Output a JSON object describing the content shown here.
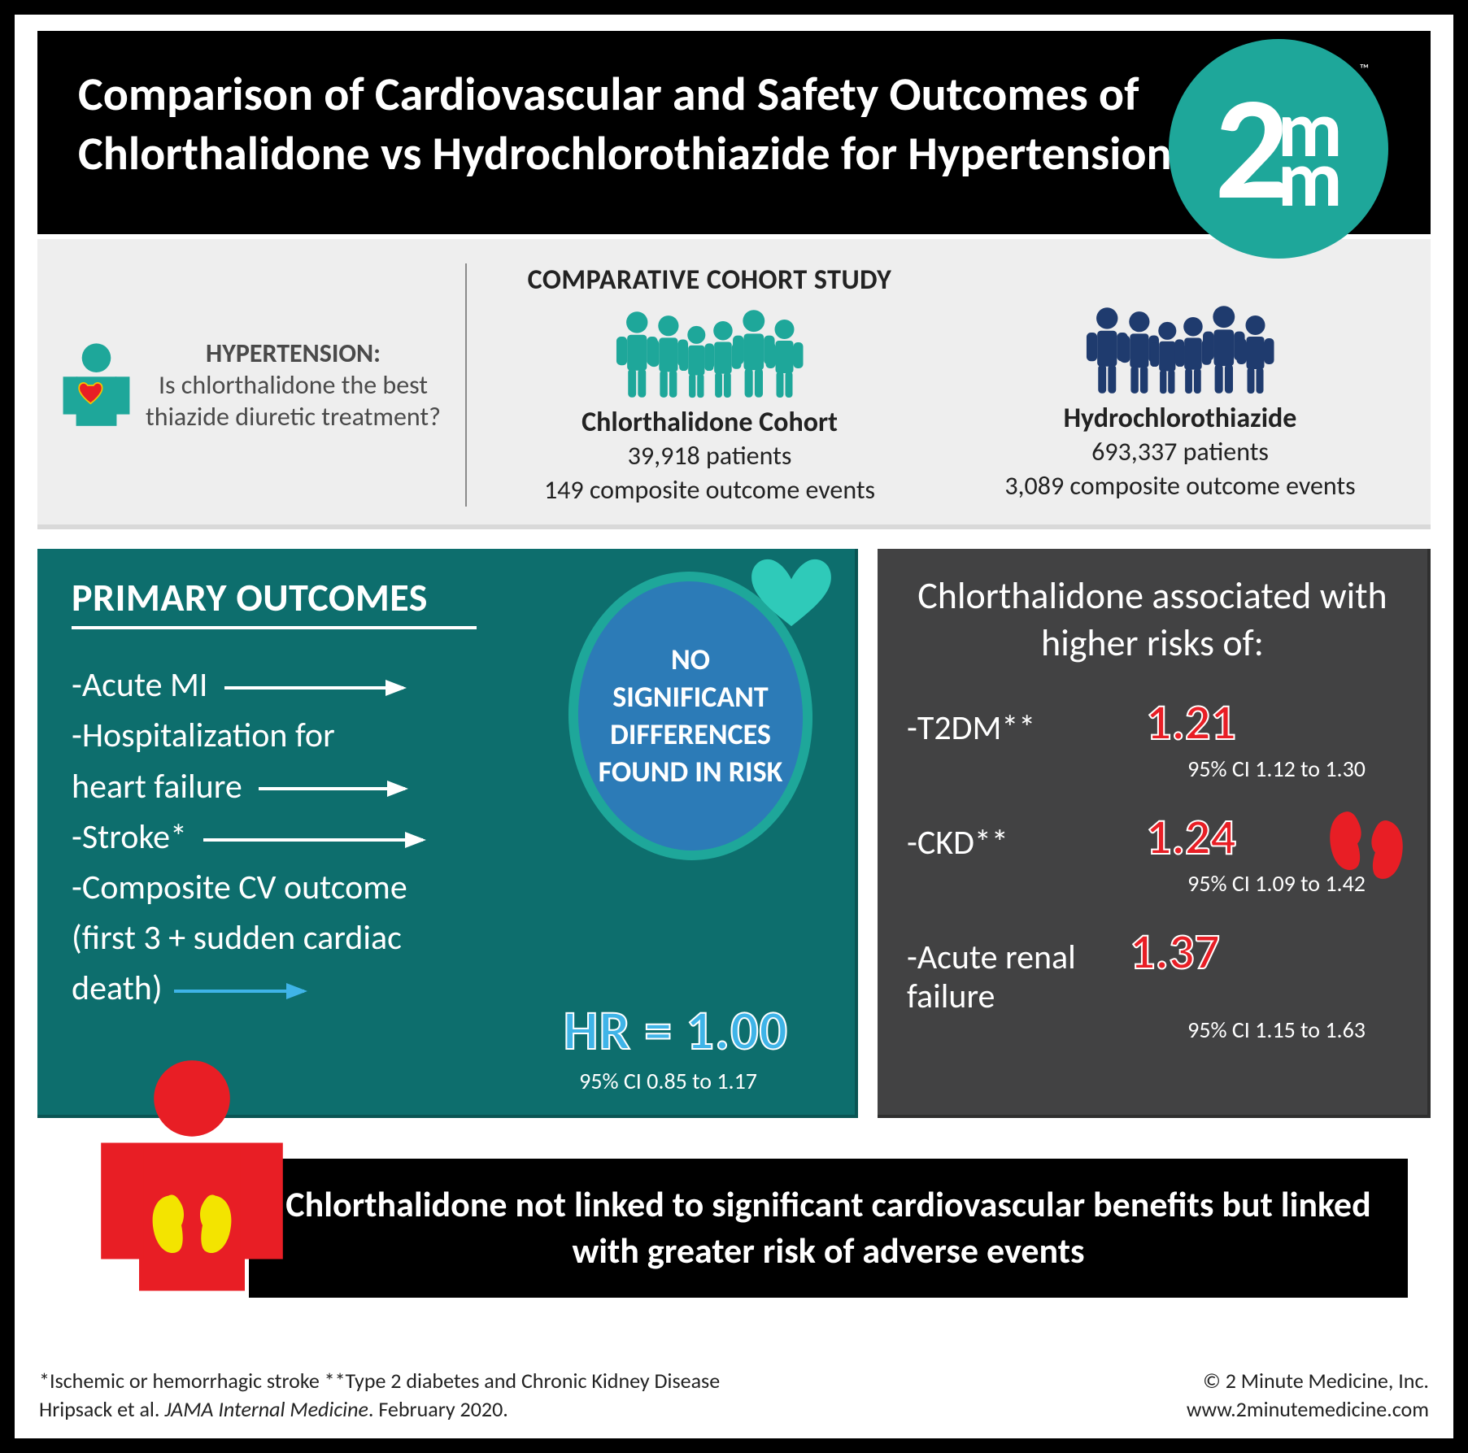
{
  "colors": {
    "teal": "#1ea79a",
    "teal_dark": "#0d6e6d",
    "navy": "#1f3b6e",
    "blue": "#2c7bb7",
    "light_blue": "#3fb4e8",
    "gray_box": "#424243",
    "red": "#e81e25",
    "bg_gray": "#eeeeee"
  },
  "header": {
    "title": "Comparison of Cardiovascular and Safety Outcomes of Chlorthalidone vs Hydrochlorothiazide for Hypertension",
    "logo_big": "2",
    "logo_m1": "m",
    "logo_m2": "m",
    "logo_tm": "™"
  },
  "cohort": {
    "question_pre": "HYPERTENSION:",
    "question_body": "Is chlorthalidone the best thiazide diuretic treatment?",
    "study_title": "COMPARATIVE COHORT STUDY",
    "left": {
      "name": "Chlorthalidone Cohort",
      "patients": "39,918 patients",
      "events": "149 composite outcome events",
      "person_color": "#1ea79a",
      "count": 6
    },
    "right": {
      "name": "Hydrochlorothiazide",
      "patients": "693,337 patients",
      "events": "3,089 composite outcome events",
      "person_color": "#1f3b6e",
      "count": 6
    }
  },
  "primary": {
    "title": "PRIMARY OUTCOMES",
    "items": [
      "-Acute MI",
      "-Hospitalization for",
      "  heart failure",
      "-Stroke*",
      "-Composite CV outcome",
      "(first 3 + sudden cardiac",
      "death)"
    ],
    "oval_text": "NO SIGNIFICANT DIFFERENCES FOUND IN RISK",
    "hr_label": "HR = 1.00",
    "hr_ci": "95% CI 0.85 to 1.17"
  },
  "risks": {
    "title": "Chlorthalidone associated with higher risks of:",
    "rows": [
      {
        "label": "-T2DM**",
        "value": "1.21",
        "ci": "95% CI 1.12 to 1.30"
      },
      {
        "label": "-CKD**",
        "value": "1.24",
        "ci": "95% CI 1.09 to 1.42"
      },
      {
        "label": "-Acute renal failure",
        "value": "1.37",
        "ci": "95% CI 1.15 to 1.63"
      }
    ]
  },
  "conclusion": "Chlorthalidone not linked to significant cardiovascular benefits but linked with greater risk of adverse events",
  "footer": {
    "note1": "*Ischemic or hemorrhagic stroke **Type 2 diabetes and Chronic Kidney Disease",
    "note2_pre": "Hripsack et al. ",
    "note2_em": "JAMA Internal Medicine",
    "note2_post": ". February 2020.",
    "copy": "© 2 Minute Medicine, Inc.",
    "url": "www.2minutemedicine.com"
  }
}
